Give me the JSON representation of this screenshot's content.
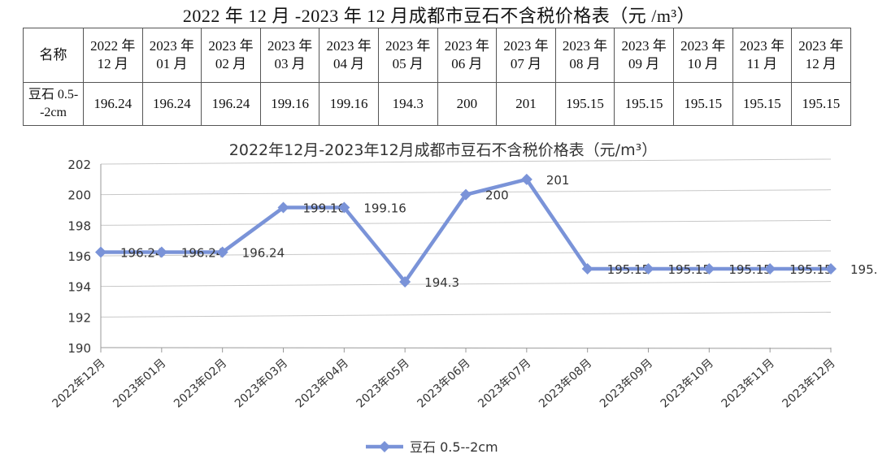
{
  "table": {
    "title": "2022 年 12 月 -2023 年 12 月成都市豆石不含税价格表（元 /m³）",
    "header_name": "名称",
    "columns": [
      "2022 年 12 月",
      "2023 年 01 月",
      "2023 年 02 月",
      "2023 年 03 月",
      "2023 年 04 月",
      "2023 年 05 月",
      "2023 年 06 月",
      "2023 年 07 月",
      "2023 年 08 月",
      "2023 年 09 月",
      "2023 年 10 月",
      "2023 年 11 月",
      "2023 年 12 月"
    ],
    "row_name": "豆石 0.5--2cm",
    "row_values": [
      "196.24",
      "196.24",
      "196.24",
      "199.16",
      "199.16",
      "194.3",
      "200",
      "201",
      "195.15",
      "195.15",
      "195.15",
      "195.15",
      "195.15"
    ]
  },
  "chart_data": {
    "type": "line",
    "title": "2022年12月-2023年12月成都市豆石不含税价格表（元/m³）",
    "categories": [
      "2022年12月",
      "2023年01月",
      "2023年02月",
      "2023年03月",
      "2023年04月",
      "2023年05月",
      "2023年06月",
      "2023年07月",
      "2023年08月",
      "2023年09月",
      "2023年10月",
      "2023年11月",
      "2023年12月"
    ],
    "series": [
      {
        "name": "豆石 0.5--2cm",
        "values": [
          196.24,
          196.24,
          196.24,
          199.16,
          199.16,
          194.3,
          200,
          201,
          195.15,
          195.15,
          195.15,
          195.15,
          195.15
        ]
      }
    ],
    "ylim": [
      190,
      202
    ],
    "yticks": [
      190,
      192,
      194,
      196,
      198,
      200,
      202
    ],
    "grid": true,
    "legend": "bottom",
    "color": "#7a93d8"
  }
}
